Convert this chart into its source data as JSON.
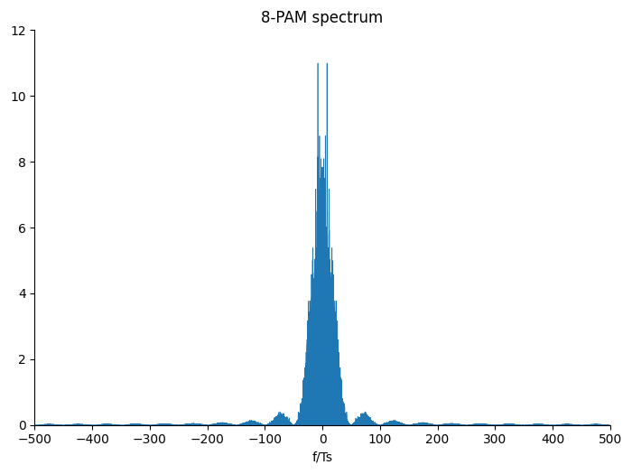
{
  "title": "8-PAM spectrum",
  "xlabel": "f/Ts",
  "ylabel": "",
  "xlim": [
    -500,
    500
  ],
  "ylim": [
    0,
    12
  ],
  "xticks": [
    -500,
    -400,
    -300,
    -200,
    -100,
    0,
    100,
    200,
    300,
    400,
    500
  ],
  "yticks": [
    0,
    2,
    4,
    6,
    8,
    10,
    12
  ],
  "line_color": "#1f77b4",
  "fill_color": "#1f77b4",
  "background_color": "#ffffff",
  "title_fontsize": 12,
  "axis_fontsize": 10,
  "peak_value": 11.0,
  "lorentz_gamma": 5.0,
  "num_points": 100000,
  "f_range": 500
}
